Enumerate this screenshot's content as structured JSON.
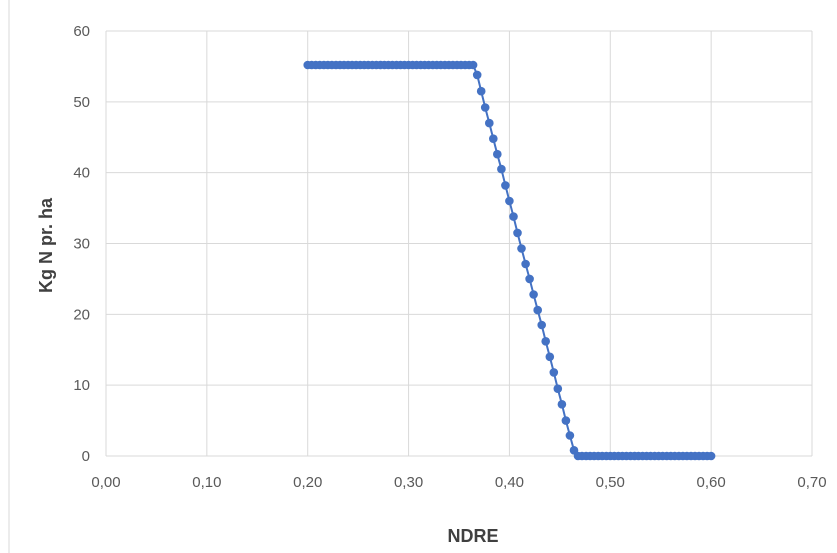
{
  "chart_data": {
    "type": "scatter",
    "xlabel": "NDRE",
    "ylabel": "Kg N pr. ha",
    "xlim": [
      0,
      0.7
    ],
    "ylim": [
      0,
      60
    ],
    "x_ticks": [
      "0,00",
      "0,10",
      "0,20",
      "0,30",
      "0,40",
      "0,50",
      "0,60",
      "0,70"
    ],
    "y_ticks": [
      "0",
      "10",
      "20",
      "30",
      "40",
      "50",
      "60"
    ],
    "grid": true,
    "legend": "none",
    "series_color": "#4472c4",
    "marker": "circle",
    "connected": true,
    "series": [
      {
        "x": [
          0.2,
          0.204,
          0.208,
          0.212,
          0.216,
          0.22,
          0.224,
          0.228,
          0.232,
          0.236,
          0.24,
          0.244,
          0.248,
          0.252,
          0.256,
          0.26,
          0.264,
          0.268,
          0.272,
          0.276,
          0.28,
          0.284,
          0.288,
          0.292,
          0.296,
          0.3,
          0.304,
          0.308,
          0.312,
          0.316,
          0.32,
          0.324,
          0.328,
          0.332,
          0.336,
          0.34,
          0.344,
          0.348,
          0.352,
          0.356,
          0.36,
          0.364,
          0.368,
          0.372,
          0.376,
          0.38,
          0.384,
          0.388,
          0.392,
          0.396,
          0.4,
          0.404,
          0.408,
          0.412,
          0.416,
          0.42,
          0.424,
          0.428,
          0.432,
          0.436,
          0.44,
          0.444,
          0.448,
          0.452,
          0.456,
          0.46,
          0.464,
          0.468,
          0.472,
          0.476,
          0.48,
          0.484,
          0.488,
          0.492,
          0.496,
          0.5,
          0.504,
          0.508,
          0.512,
          0.516,
          0.52,
          0.524,
          0.528,
          0.532,
          0.536,
          0.54,
          0.544,
          0.548,
          0.552,
          0.556,
          0.56,
          0.564,
          0.568,
          0.572,
          0.576,
          0.58,
          0.584,
          0.588,
          0.592,
          0.596,
          0.6
        ],
        "y": [
          55.2,
          55.2,
          55.2,
          55.2,
          55.2,
          55.2,
          55.2,
          55.2,
          55.2,
          55.2,
          55.2,
          55.2,
          55.2,
          55.2,
          55.2,
          55.2,
          55.2,
          55.2,
          55.2,
          55.2,
          55.2,
          55.2,
          55.2,
          55.2,
          55.2,
          55.2,
          55.2,
          55.2,
          55.2,
          55.2,
          55.2,
          55.2,
          55.2,
          55.2,
          55.2,
          55.2,
          55.2,
          55.2,
          55.2,
          55.2,
          55.2,
          55.2,
          53.8,
          51.5,
          49.2,
          47.0,
          44.8,
          42.6,
          40.5,
          38.2,
          36.0,
          33.8,
          31.5,
          29.3,
          27.1,
          25.0,
          22.8,
          20.6,
          18.5,
          16.2,
          14.0,
          11.8,
          9.5,
          7.3,
          5.0,
          2.9,
          0.8,
          0,
          0,
          0,
          0,
          0,
          0,
          0,
          0,
          0,
          0,
          0,
          0,
          0,
          0,
          0,
          0,
          0,
          0,
          0,
          0,
          0,
          0,
          0,
          0,
          0,
          0,
          0,
          0,
          0,
          0,
          0,
          0,
          0,
          0
        ]
      }
    ]
  }
}
